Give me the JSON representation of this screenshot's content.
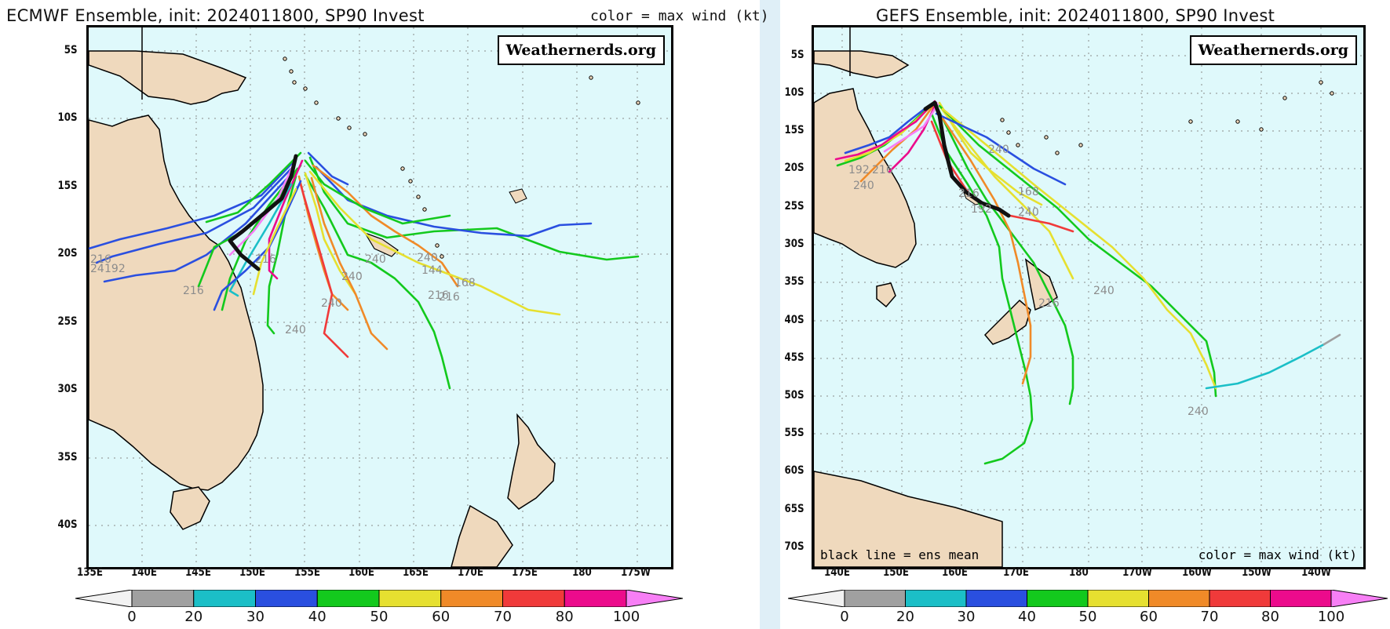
{
  "panels": {
    "left": {
      "title": "ECMWF Ensemble, init: 2024011800, SP90 Invest",
      "color_note": "color = max wind (kt)",
      "brand": "Weathernerds.org",
      "lon_labels": [
        "135E",
        "140E",
        "145E",
        "150E",
        "155E",
        "160E",
        "165E",
        "170E",
        "175E",
        "180",
        "175W"
      ],
      "lat_labels": [
        "5S",
        "10S",
        "15S",
        "20S",
        "25S",
        "30S",
        "35S",
        "40S"
      ],
      "hour_labels": [
        "216",
        "24",
        "192",
        "216",
        "240",
        "240",
        "216",
        "240",
        "216",
        "240",
        "240",
        "216",
        "144",
        "168"
      ]
    },
    "right": {
      "title": "GEFS Ensemble, init: 2024011800, SP90 Invest",
      "mean_note": "black line = ens mean",
      "color_note": "color = max wind (kt)",
      "brand": "Weathernerds.org",
      "lon_labels": [
        "140E",
        "150E",
        "160E",
        "170E",
        "180",
        "170W",
        "160W",
        "150W",
        "140W"
      ],
      "lat_labels": [
        "5S",
        "10S",
        "15S",
        "20S",
        "25S",
        "30S",
        "35S",
        "40S",
        "45S",
        "50S",
        "55S",
        "60S",
        "65S",
        "70S"
      ],
      "hour_labels": [
        "192",
        "216",
        "240",
        "240",
        "216",
        "240",
        "168",
        "192",
        "216",
        "240",
        "240"
      ]
    }
  },
  "colorbar": {
    "ticks": [
      "0",
      "20",
      "30",
      "40",
      "50",
      "60",
      "70",
      "80",
      "100"
    ],
    "colors": [
      "#f2f2f2",
      "#a0a0a0",
      "#1bbfc7",
      "#2a4fe0",
      "#13c91d",
      "#e6e030",
      "#f08a28",
      "#f03a3a",
      "#ec0b8c",
      "#f77ff5"
    ]
  },
  "colors": {
    "ocean": "#dff9fb",
    "land": "#efd9bd",
    "mean_track": "#111111",
    "grid": "#8a8a8a"
  }
}
